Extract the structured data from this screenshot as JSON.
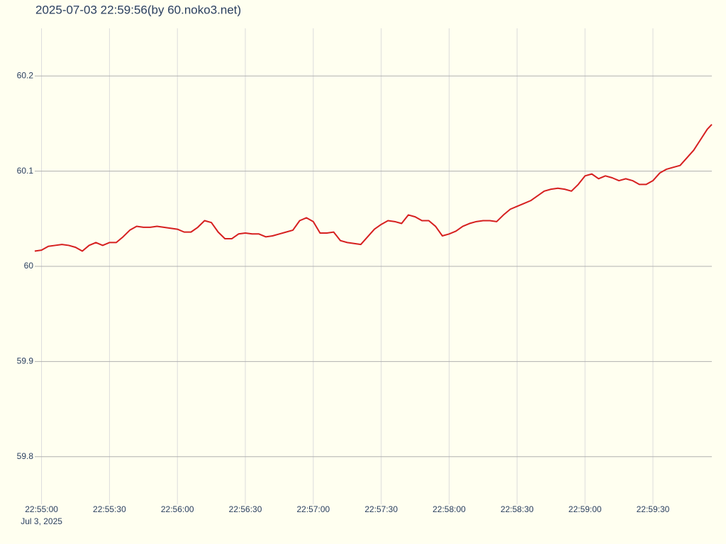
{
  "chart_data": {
    "type": "line",
    "title": "2025-07-03 22:59:56(by 60.noko3.net)",
    "x_date_label": "Jul 3, 2025",
    "color": "#d62020",
    "grid": true,
    "xlim": [
      "22:54:57",
      "22:59:56"
    ],
    "xticks": [
      "22:55:00",
      "22:55:30",
      "22:56:00",
      "22:56:30",
      "22:57:00",
      "22:57:30",
      "22:58:00",
      "22:58:30",
      "22:59:00",
      "22:59:30"
    ],
    "ylim": [
      59.75,
      60.25
    ],
    "yticks": [
      59.8,
      59.9,
      60,
      60.1,
      60.2
    ],
    "x": [
      "22:54:57",
      "22:55:00",
      "22:55:03",
      "22:55:06",
      "22:55:09",
      "22:55:12",
      "22:55:15",
      "22:55:18",
      "22:55:21",
      "22:55:24",
      "22:55:27",
      "22:55:30",
      "22:55:33",
      "22:55:36",
      "22:55:39",
      "22:55:42",
      "22:55:45",
      "22:55:48",
      "22:55:51",
      "22:55:54",
      "22:55:57",
      "22:56:00",
      "22:56:03",
      "22:56:06",
      "22:56:09",
      "22:56:12",
      "22:56:15",
      "22:56:18",
      "22:56:21",
      "22:56:24",
      "22:56:27",
      "22:56:30",
      "22:56:33",
      "22:56:36",
      "22:56:39",
      "22:56:42",
      "22:56:45",
      "22:56:48",
      "22:56:51",
      "22:56:54",
      "22:56:57",
      "22:57:00",
      "22:57:03",
      "22:57:06",
      "22:57:09",
      "22:57:12",
      "22:57:15",
      "22:57:18",
      "22:57:21",
      "22:57:24",
      "22:57:27",
      "22:57:30",
      "22:57:33",
      "22:57:36",
      "22:57:39",
      "22:57:42",
      "22:57:45",
      "22:57:48",
      "22:57:51",
      "22:57:54",
      "22:57:57",
      "22:58:00",
      "22:58:03",
      "22:58:06",
      "22:58:09",
      "22:58:12",
      "22:58:15",
      "22:58:18",
      "22:58:21",
      "22:58:24",
      "22:58:27",
      "22:58:30",
      "22:58:33",
      "22:58:36",
      "22:58:39",
      "22:58:42",
      "22:58:45",
      "22:58:48",
      "22:58:51",
      "22:58:54",
      "22:58:57",
      "22:59:00",
      "22:59:03",
      "22:59:06",
      "22:59:09",
      "22:59:12",
      "22:59:15",
      "22:59:18",
      "22:59:21",
      "22:59:24",
      "22:59:27",
      "22:59:30",
      "22:59:33",
      "22:59:36",
      "22:59:39",
      "22:59:42",
      "22:59:45",
      "22:59:48",
      "22:59:51",
      "22:59:54",
      "22:59:56"
    ],
    "values": [
      60.016,
      60.017,
      60.021,
      60.022,
      60.023,
      60.022,
      60.02,
      60.016,
      60.022,
      60.025,
      60.022,
      60.025,
      60.025,
      60.031,
      60.038,
      60.042,
      60.041,
      60.041,
      60.042,
      60.041,
      60.04,
      60.039,
      60.036,
      60.036,
      60.041,
      60.048,
      60.046,
      60.036,
      60.029,
      60.029,
      60.034,
      60.035,
      60.034,
      60.034,
      60.031,
      60.032,
      60.034,
      60.036,
      60.038,
      60.048,
      60.051,
      60.047,
      60.035,
      60.035,
      60.036,
      60.027,
      60.025,
      60.024,
      60.023,
      60.031,
      60.039,
      60.044,
      60.048,
      60.047,
      60.045,
      60.054,
      60.052,
      60.048,
      60.048,
      60.042,
      60.032,
      60.034,
      60.037,
      60.042,
      60.045,
      60.047,
      60.048,
      60.048,
      60.047,
      60.054,
      60.06,
      60.063,
      60.066,
      60.069,
      60.074,
      60.079,
      60.081,
      60.082,
      60.081,
      60.079,
      60.086,
      60.095,
      60.097,
      60.092,
      60.095,
      60.093,
      60.09,
      60.092,
      60.09,
      60.086,
      60.086,
      60.09,
      60.098,
      60.102,
      60.104,
      60.106,
      60.114,
      60.122,
      60.133,
      60.144,
      60.149
    ]
  }
}
